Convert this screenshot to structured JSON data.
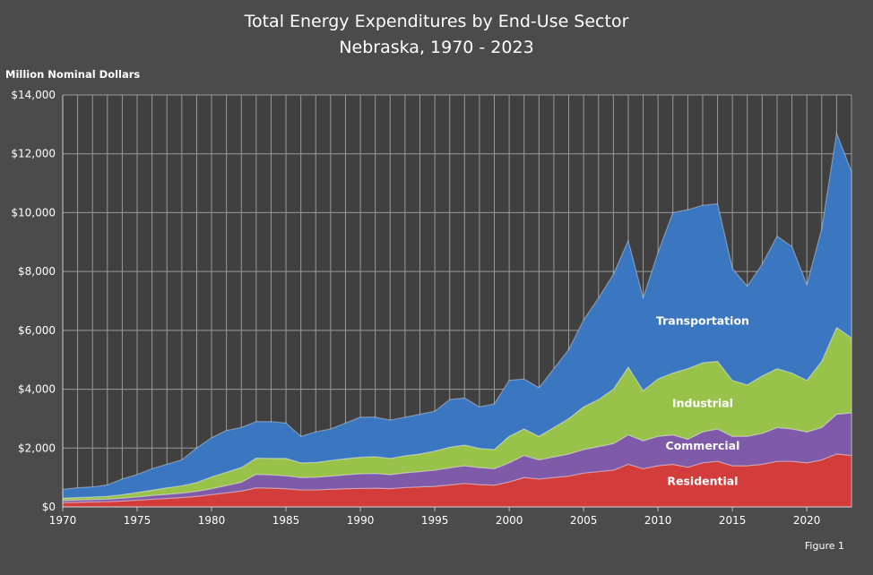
{
  "chart_data": {
    "type": "area",
    "stacked": true,
    "title": "Total Energy Expenditures by End-Use Sector",
    "subtitle": "Nebraska, 1970 - 2023",
    "ylabel": "Million Nominal Dollars",
    "xlabel": "",
    "footnote": "Figure 1",
    "ylim": [
      0,
      14000
    ],
    "xlim": [
      1970,
      2023
    ],
    "y_ticks": [
      "$0",
      "$2,000",
      "$4,000",
      "$6,000",
      "$8,000",
      "$10,000",
      "$12,000",
      "$14,000"
    ],
    "x_ticks": [
      "1970",
      "1975",
      "1980",
      "1985",
      "1990",
      "1995",
      "2000",
      "2005",
      "2010",
      "2015",
      "2020"
    ],
    "grid": true,
    "x": [
      1970,
      1971,
      1972,
      1973,
      1974,
      1975,
      1976,
      1977,
      1978,
      1979,
      1980,
      1981,
      1982,
      1983,
      1984,
      1985,
      1986,
      1987,
      1988,
      1989,
      1990,
      1991,
      1992,
      1993,
      1994,
      1995,
      1996,
      1997,
      1998,
      1999,
      2000,
      2001,
      2002,
      2003,
      2004,
      2005,
      2006,
      2007,
      2008,
      2009,
      2010,
      2011,
      2012,
      2013,
      2014,
      2015,
      2016,
      2017,
      2018,
      2019,
      2020,
      2021,
      2022,
      2023
    ],
    "series": [
      {
        "name": "Residential",
        "color": "#d23c3a",
        "values": [
          150,
          160,
          170,
          180,
          200,
          230,
          260,
          290,
          320,
          360,
          420,
          480,
          540,
          650,
          640,
          620,
          580,
          580,
          600,
          620,
          630,
          640,
          620,
          660,
          680,
          700,
          750,
          800,
          760,
          740,
          850,
          1000,
          950,
          1000,
          1050,
          1150,
          1200,
          1250,
          1450,
          1300,
          1400,
          1450,
          1350,
          1500,
          1550,
          1400,
          1400,
          1450,
          1550,
          1550,
          1500,
          1600,
          1800,
          1750
        ]
      },
      {
        "name": "Commercial",
        "color": "#7f5aa8",
        "values": [
          70,
          75,
          80,
          85,
          100,
          110,
          130,
          140,
          150,
          170,
          200,
          250,
          300,
          460,
          450,
          440,
          420,
          430,
          450,
          470,
          500,
          500,
          480,
          500,
          520,
          550,
          580,
          600,
          580,
          560,
          650,
          750,
          650,
          700,
          750,
          800,
          850,
          900,
          1000,
          950,
          1000,
          1000,
          950,
          1050,
          1100,
          1000,
          1000,
          1050,
          1150,
          1100,
          1050,
          1100,
          1350,
          1450
        ]
      },
      {
        "name": "Industrial",
        "color": "#98c24a",
        "values": [
          80,
          85,
          90,
          95,
          120,
          150,
          180,
          220,
          250,
          300,
          400,
          450,
          500,
          550,
          560,
          590,
          500,
          500,
          530,
          550,
          560,
          570,
          550,
          580,
          600,
          650,
          700,
          700,
          650,
          650,
          900,
          900,
          800,
          1000,
          1200,
          1450,
          1600,
          1850,
          2300,
          1700,
          1950,
          2100,
          2400,
          2350,
          2300,
          1900,
          1750,
          1950,
          2000,
          1900,
          1750,
          2250,
          2950,
          2550
        ]
      },
      {
        "name": "Transportation",
        "color": "#3b76c0",
        "values": [
          300,
          330,
          340,
          390,
          530,
          610,
          730,
          800,
          880,
          1170,
          1330,
          1420,
          1360,
          1240,
          1250,
          1200,
          900,
          1040,
          1070,
          1210,
          1360,
          1340,
          1300,
          1310,
          1350,
          1350,
          1620,
          1600,
          1410,
          1550,
          1900,
          1700,
          1650,
          2000,
          2350,
          2950,
          3450,
          3900,
          4300,
          3150,
          4300,
          5450,
          5400,
          5350,
          5350,
          3800,
          3350,
          3800,
          4500,
          4300,
          3250,
          4500,
          6600,
          5650
        ]
      }
    ],
    "label_positions_year_value": [
      {
        "series": "Transportation",
        "x": 2013,
        "y": 6200
      },
      {
        "series": "Industrial",
        "x": 2013,
        "y": 3400
      },
      {
        "series": "Commercial",
        "x": 2013,
        "y": 1950
      },
      {
        "series": "Residential",
        "x": 2013,
        "y": 750
      }
    ],
    "background": "#404040",
    "grid_color": "#9a9a9a"
  }
}
